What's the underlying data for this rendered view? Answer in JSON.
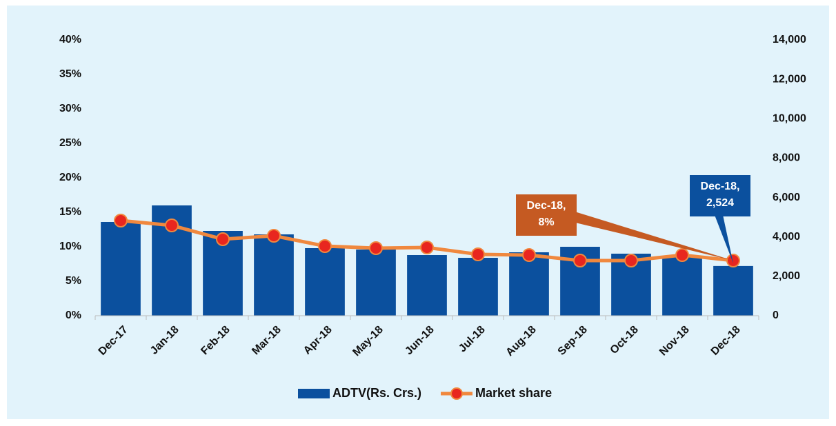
{
  "chart_data": {
    "type": "bar_line",
    "categories": [
      "Dec-17",
      "Jan-18",
      "Feb-18",
      "Mar-18",
      "Apr-18",
      "May-18",
      "Jun-18",
      "Jul-18",
      "Aug-18",
      "Sep-18",
      "Oct-18",
      "Nov-18",
      "Dec-18"
    ],
    "series": [
      {
        "name": "ADTV(Rs. Crs.)",
        "type": "bar",
        "axis": "y2",
        "color": "#0b509e",
        "values": [
          4760,
          5600,
          4305,
          4130,
          3430,
          3360,
          3080,
          2940,
          3220,
          3500,
          3150,
          3010,
          2524
        ]
      },
      {
        "name": "Market share",
        "type": "line",
        "axis": "y",
        "color": "#f0883e",
        "marker_color": "#e8261f",
        "values": [
          13.8,
          13.1,
          11.1,
          11.6,
          10.1,
          9.8,
          9.9,
          8.9,
          8.8,
          8.0,
          8.0,
          8.8,
          8
        ]
      }
    ],
    "ylim": [
      0,
      40
    ],
    "yticks": [
      {
        "value": 0,
        "label": "0%"
      },
      {
        "value": 5,
        "label": "5%"
      },
      {
        "value": 10,
        "label": "10%"
      },
      {
        "value": 15,
        "label": "15%"
      },
      {
        "value": 20,
        "label": "20%"
      },
      {
        "value": 25,
        "label": "25%"
      },
      {
        "value": 30,
        "label": "30%"
      },
      {
        "value": 35,
        "label": "35%"
      },
      {
        "value": 40,
        "label": "40%"
      }
    ],
    "y2lim": [
      0,
      14000
    ],
    "y2ticks": [
      0,
      {
        "value": 2000,
        "label": "2,000"
      },
      {
        "value": 4000,
        "label": "4,000"
      },
      {
        "value": 6000,
        "label": "6,000"
      },
      {
        "value": 8000,
        "label": "8,000"
      },
      {
        "value": 10000,
        "label": "10,000"
      },
      {
        "value": 12000,
        "label": "12,000"
      },
      {
        "value": 14000,
        "label": "14,000"
      }
    ],
    "annotations": [
      {
        "lines": [
          "Dec-18,",
          "8%"
        ],
        "series": 1,
        "index": 12,
        "color": "#c55a22"
      },
      {
        "lines": [
          "Dec-18,",
          "2,524"
        ],
        "series": 0,
        "index": 12,
        "color": "#0b509e"
      }
    ],
    "legend": "bottom"
  }
}
